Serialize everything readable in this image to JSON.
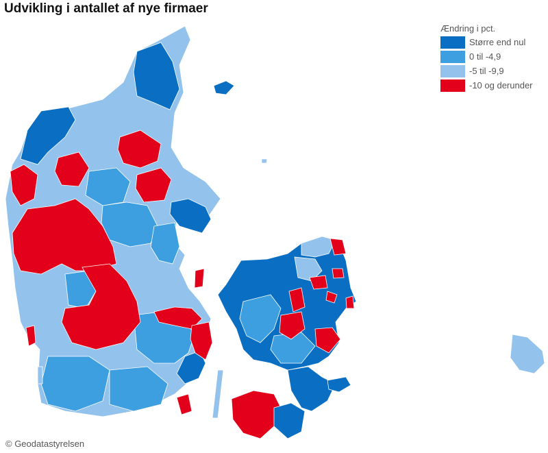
{
  "title": "Udvikling i antallet af nye firmaer",
  "legend": {
    "title": "Ændring i pct.",
    "items": [
      {
        "label": "Større end nul",
        "color": "#0a6fc2"
      },
      {
        "label": "0 til -4,9",
        "color": "#3d9ee0"
      },
      {
        "label": "-5 til -9,9",
        "color": "#93c3ec"
      },
      {
        "label": "-10 og derunder",
        "color": "#e3001b"
      }
    ]
  },
  "credit": "© Geodatastyrelsen"
}
